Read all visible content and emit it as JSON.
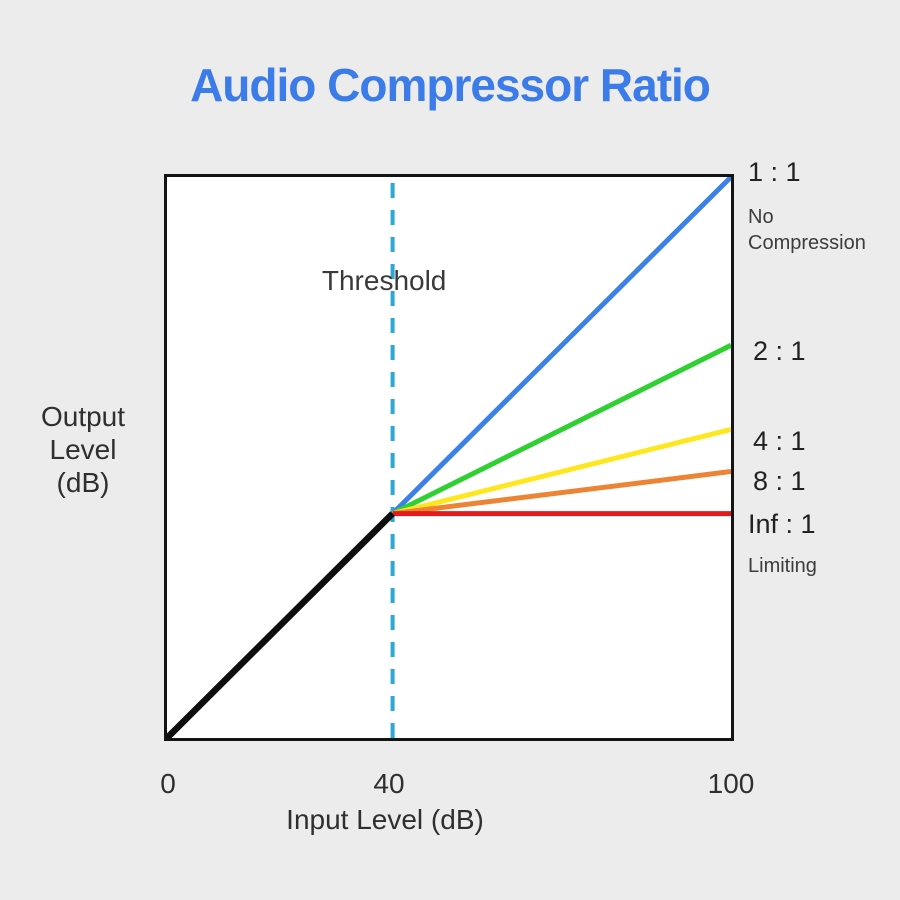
{
  "title": "Audio Compressor Ratio",
  "colors": {
    "background": "#ECECEC",
    "title_accent": "#3B7CE9",
    "threshold_dash": "#2BA9D4",
    "plot_border": "#141414"
  },
  "axis": {
    "x_ticks": [
      "0",
      "40",
      "100"
    ],
    "xlabel": "Input Level (dB)",
    "ylabel_lines": [
      "Output",
      "Level",
      "(dB)"
    ]
  },
  "chart_data": {
    "type": "line",
    "title": "Audio Compressor Ratio",
    "xlabel": "Input Level (dB)",
    "ylabel": "Output Level (dB)",
    "xlim": [
      0,
      100
    ],
    "ylim": [
      0,
      100
    ],
    "x_ticks": [
      0,
      40,
      100
    ],
    "y_ticks": [],
    "grid": false,
    "legend_position": "right-of-line-endpoints",
    "threshold": {
      "x": 40,
      "label": "Threshold",
      "color": "#2BA9D4"
    },
    "base_line": {
      "name": "unity-below-threshold",
      "points": [
        [
          0,
          0
        ],
        [
          40,
          40
        ]
      ],
      "color": "#0E0E0E"
    },
    "series": [
      {
        "name": "1 : 1",
        "sublabel": "No Compression",
        "ratio": "1",
        "points": [
          [
            40,
            40
          ],
          [
            100,
            100
          ]
        ],
        "color": "#3C82E6"
      },
      {
        "name": "2 : 1",
        "sublabel": "",
        "ratio": "2",
        "points": [
          [
            40,
            40
          ],
          [
            100,
            70
          ]
        ],
        "color": "#2FD032"
      },
      {
        "name": "4 : 1",
        "sublabel": "",
        "ratio": "4",
        "points": [
          [
            40,
            40
          ],
          [
            100,
            55
          ]
        ],
        "color": "#FFE71F"
      },
      {
        "name": "8 : 1",
        "sublabel": "",
        "ratio": "8",
        "points": [
          [
            40,
            40
          ],
          [
            100,
            47.5
          ]
        ],
        "color": "#EC8434"
      },
      {
        "name": "Inf : 1",
        "sublabel": "Limiting",
        "ratio": "Inf",
        "points": [
          [
            40,
            40
          ],
          [
            100,
            40
          ]
        ],
        "color": "#E31B1C"
      }
    ]
  }
}
